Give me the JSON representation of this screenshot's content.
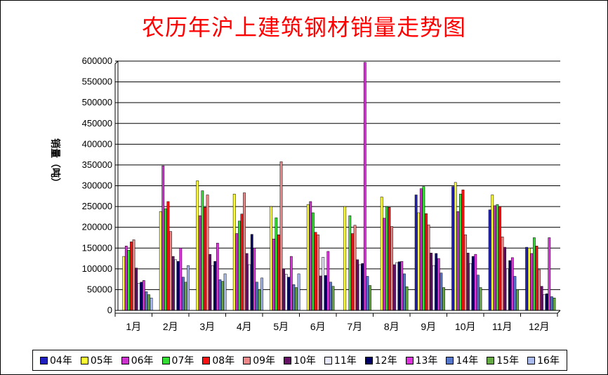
{
  "chart_data": {
    "type": "bar",
    "title": "农历年沪上建筑钢材销量走势图",
    "ylabel": "销量（吨）",
    "ylim": [
      0,
      600000
    ],
    "yticks": [
      "0",
      "50000",
      "100000",
      "150000",
      "200000",
      "250000",
      "300000",
      "350000",
      "400000",
      "450000",
      "500000",
      "550000",
      "600000"
    ],
    "categories": [
      "1月",
      "2月",
      "3月",
      "4月",
      "5月",
      "6月",
      "7月",
      "8月",
      "9月",
      "10月",
      "11月",
      "12月"
    ],
    "grid": true,
    "legend": "bottom",
    "series": [
      {
        "name": "04年",
        "color": "#1f1fbf",
        "values": [
          0,
          0,
          0,
          0,
          0,
          0,
          0,
          0,
          278000,
          298000,
          242000,
          152000
        ]
      },
      {
        "name": "05年",
        "color": "#ffff33",
        "values": [
          130000,
          238000,
          312000,
          280000,
          250000,
          255000,
          250000,
          273000,
          235000,
          308000,
          278000,
          150000
        ]
      },
      {
        "name": "06年",
        "color": "#cc33cc",
        "values": [
          155000,
          348000,
          228000,
          185000,
          172000,
          262000,
          0,
          222000,
          293000,
          238000,
          252000,
          137000
        ]
      },
      {
        "name": "07年",
        "color": "#33dd33",
        "values": [
          145000,
          245000,
          288000,
          215000,
          223000,
          235000,
          228000,
          250000,
          298000,
          280000,
          255000,
          175000
        ]
      },
      {
        "name": "08年",
        "color": "#ff1111",
        "values": [
          165000,
          262000,
          248000,
          232000,
          182000,
          188000,
          185000,
          248000,
          233000,
          290000,
          250000,
          155000
        ]
      },
      {
        "name": "09年",
        "color": "#ee8888",
        "values": [
          170000,
          190000,
          278000,
          283000,
          358000,
          182000,
          205000,
          202000,
          206000,
          182000,
          177000,
          98000
        ]
      },
      {
        "name": "10年",
        "color": "#661166",
        "values": [
          102000,
          130000,
          135000,
          137000,
          100000,
          83000,
          122000,
          110000,
          138000,
          138000,
          152000,
          58000
        ]
      },
      {
        "name": "11年",
        "color": "#e8e8ff",
        "values": [
          65000,
          122000,
          108000,
          110000,
          87000,
          128000,
          110000,
          115000,
          108000,
          113000,
          100000,
          38000
        ]
      },
      {
        "name": "12年",
        "color": "#000066",
        "values": [
          68000,
          118000,
          118000,
          183000,
          80000,
          84000,
          113000,
          117000,
          137000,
          130000,
          120000,
          40000
        ]
      },
      {
        "name": "13年",
        "color": "#dd33dd",
        "values": [
          72000,
          150000,
          162000,
          150000,
          130000,
          142000,
          597000,
          118000,
          125000,
          135000,
          127000,
          175000
        ]
      },
      {
        "name": "14年",
        "color": "#5577cc",
        "values": [
          45000,
          80000,
          74000,
          68000,
          62000,
          68000,
          82000,
          88000,
          90000,
          85000,
          82000,
          33000
        ]
      },
      {
        "name": "15年",
        "color": "#66aa44",
        "values": [
          38000,
          68000,
          70000,
          50000,
          55000,
          58000,
          60000,
          57000,
          55000,
          55000,
          50000,
          30000
        ]
      },
      {
        "name": "16年",
        "color": "#aabbee",
        "values": [
          30000,
          108000,
          88000,
          78000,
          88000,
          0,
          0,
          0,
          0,
          0,
          0,
          0
        ]
      }
    ]
  }
}
